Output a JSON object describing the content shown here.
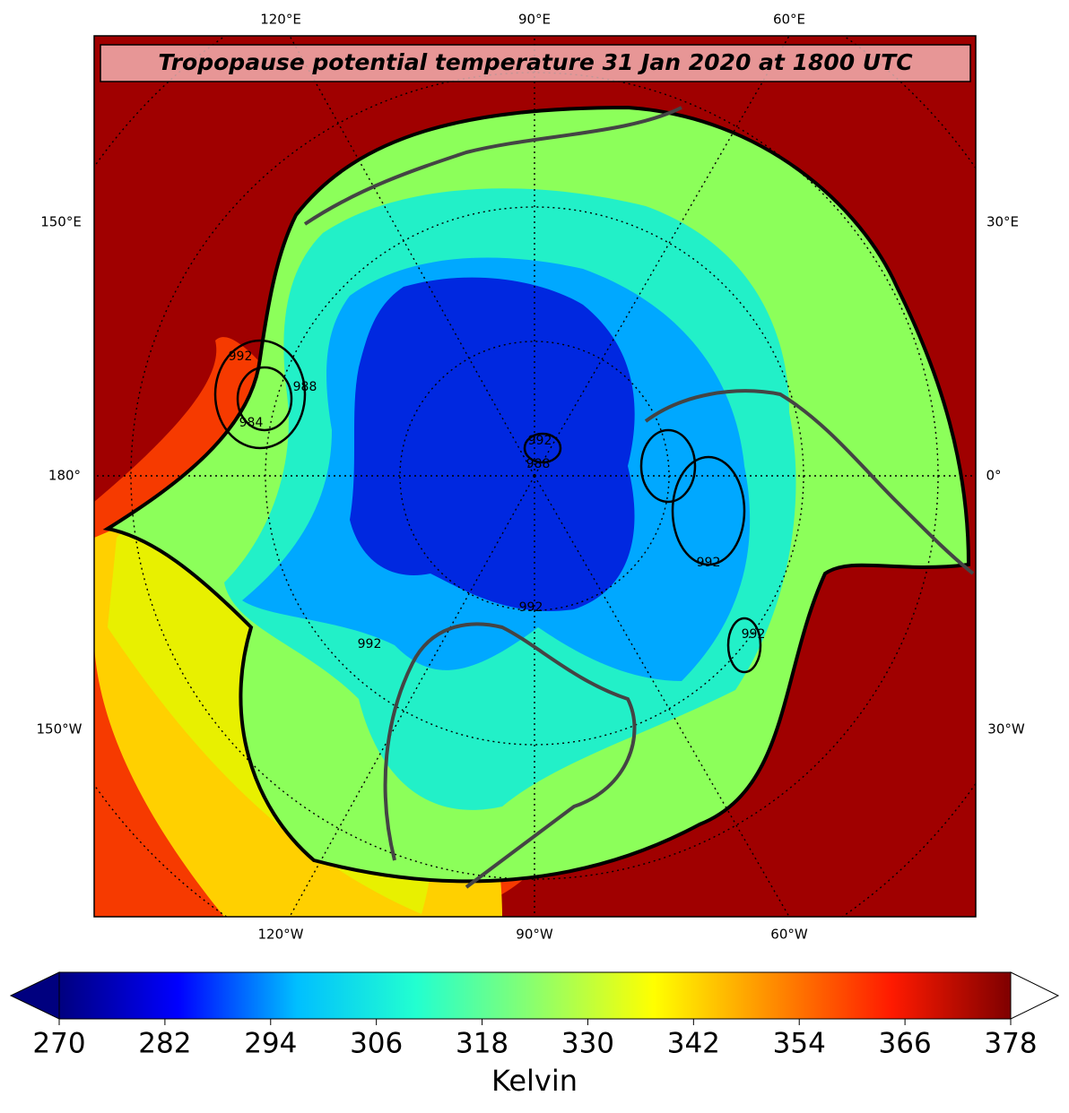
{
  "title": "Tropopause potential temperature 31 Jan 2020 at 1800 UTC",
  "map": {
    "lon_labels_top": [
      "120°E",
      "90°E",
      "60°E"
    ],
    "lon_labels_bottom": [
      "120°W",
      "90°W",
      "60°W"
    ],
    "lon_labels_left": [
      "150°E",
      "180°",
      "150°W"
    ],
    "lon_labels_right": [
      "30°E",
      "0°",
      "30°W"
    ],
    "contour_labels": [
      "992",
      "984",
      "988",
      "992",
      "988",
      "992",
      "992",
      "992",
      "992"
    ]
  },
  "colorbar": {
    "range": [
      270,
      378
    ],
    "ticks": [
      270,
      282,
      294,
      306,
      318,
      330,
      342,
      354,
      366,
      378
    ],
    "label": "Kelvin",
    "colors": [
      "#00007f",
      "#0000ff",
      "#00bfff",
      "#22ffd0",
      "#8cff6c",
      "#ffff00",
      "#ff8c00",
      "#ff1a00",
      "#7f0000"
    ],
    "under_color": "#00007f",
    "over_color": "#ffffff"
  }
}
